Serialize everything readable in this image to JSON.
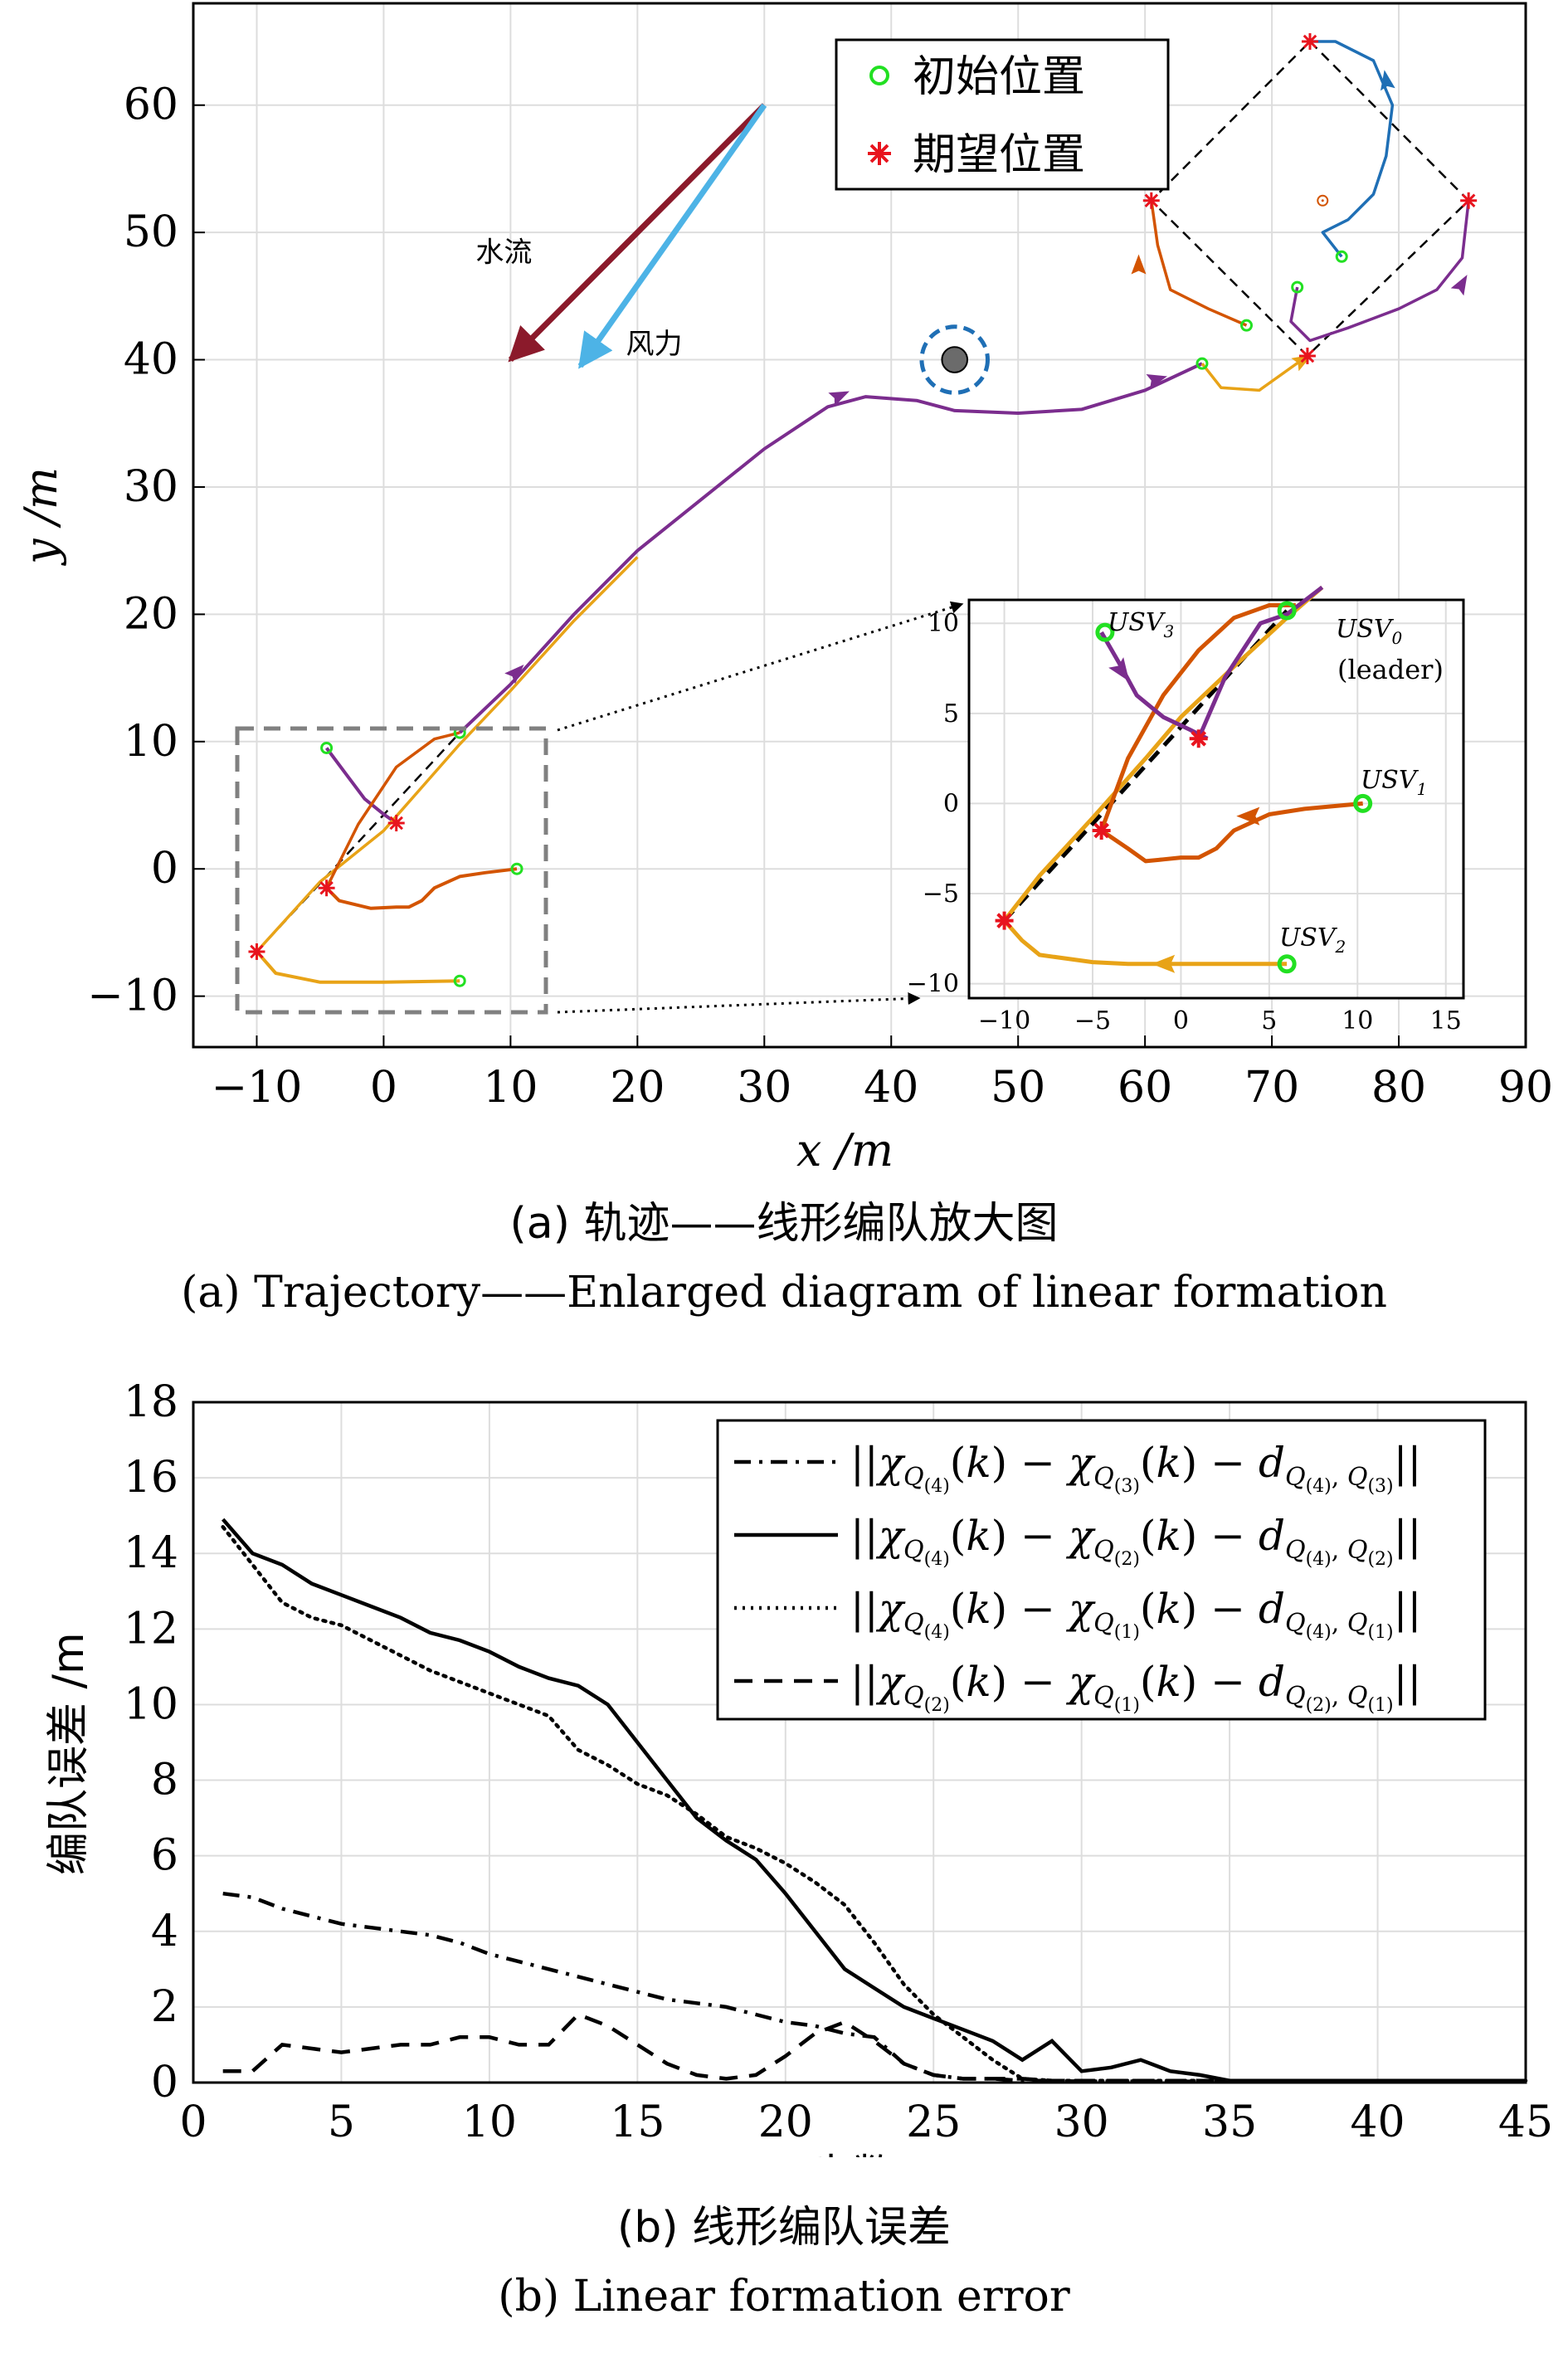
{
  "captions": {
    "a_cn": "(a) 轨迹——线形编队放大图",
    "a_en": "(a) Trajectory——Enlarged diagram of linear formation",
    "b_cn": "(b) 线形编队误差",
    "b_en": "(b) Linear formation error"
  },
  "chart_data": [
    {
      "type": "line",
      "xlabel": "x /m",
      "ylabel": "y /m",
      "xlim": [
        -15,
        90
      ],
      "ylim": [
        -14,
        68
      ],
      "xticks": [
        -10,
        0,
        10,
        20,
        30,
        40,
        50,
        60,
        70,
        80,
        90
      ],
      "yticks": [
        -10,
        0,
        10,
        20,
        30,
        40,
        50,
        60
      ],
      "grid": true,
      "legend": {
        "placement": "top",
        "entries": [
          "初始位置",
          "期望位置"
        ]
      },
      "annotations": [
        {
          "text": "水流",
          "color": "#8b1a2b",
          "from": [
            30,
            60
          ],
          "to": [
            10,
            40
          ]
        },
        {
          "text": "风力",
          "color": "#4db3e6",
          "from": [
            30,
            60
          ],
          "to": [
            15.5,
            39.5
          ]
        }
      ],
      "obstacle": {
        "center": [
          45,
          40
        ],
        "radius": 1,
        "safety_radius": 2.6
      },
      "initial_positions": [
        [
          6,
          10.7
        ],
        [
          10.5,
          0
        ],
        [
          6,
          -8.8
        ],
        [
          -4.5,
          9.5
        ],
        [
          64.5,
          39.7
        ],
        [
          68,
          42.7
        ],
        [
          72,
          45.7
        ],
        [
          75.5,
          48.1
        ]
      ],
      "expected_positions": [
        [
          -10,
          -6.5
        ],
        [
          -4.5,
          -1.5
        ],
        [
          1,
          3.6
        ],
        [
          72.8,
          40.3
        ],
        [
          85.5,
          52.5
        ],
        [
          73,
          65
        ],
        [
          60.5,
          52.5
        ]
      ],
      "series": [
        {
          "name": "USV0",
          "color": "#7b2d8e",
          "x": [
            6,
            10,
            15,
            20,
            25,
            30,
            35,
            38,
            42,
            45,
            50,
            55,
            60,
            64.5
          ],
          "y": [
            10.7,
            14.5,
            20,
            25,
            29,
            33,
            36.3,
            37.1,
            36.8,
            36,
            35.8,
            36.1,
            37.6,
            39.7
          ]
        },
        {
          "name": "USV1",
          "color": "#d35400",
          "x": [
            10.5,
            8,
            6,
            4,
            3,
            2,
            1,
            -1,
            -3.5,
            -4.5
          ],
          "y": [
            0,
            -0.3,
            -0.6,
            -1.5,
            -2.5,
            -3,
            -3,
            -3.1,
            -2.5,
            -1.5
          ]
        },
        {
          "name": "USV2",
          "color": "#e8a317",
          "x": [
            6,
            0,
            -5,
            -8.5,
            -10
          ],
          "y": [
            -8.8,
            -8.9,
            -8.9,
            -8.2,
            -6.5
          ]
        },
        {
          "name": "USV3",
          "color": "#7b2d8e",
          "x": [
            -4.5,
            -3,
            -1.5,
            0,
            1
          ],
          "y": [
            9.5,
            7.5,
            5.5,
            4.3,
            3.6
          ]
        }
      ],
      "inset": {
        "xlim": [
          -12,
          16
        ],
        "ylim": [
          -10.8,
          11.3
        ],
        "xticks": [
          -10,
          -5,
          0,
          5,
          10,
          15
        ],
        "yticks": [
          -10,
          -5,
          0,
          5,
          10
        ],
        "labels": {
          "usv0": "USV",
          "usv0_sub": "0",
          "leader": "(leader)",
          "usv1": "USV",
          "usv1_sub": "1",
          "usv2": "USV",
          "usv2_sub": "2",
          "usv3": "USV",
          "usv3_sub": "3"
        }
      }
    },
    {
      "type": "line",
      "xlabel": "步数",
      "ylabel": "编队误差 /m",
      "xlim": [
        0,
        45
      ],
      "ylim": [
        0,
        18
      ],
      "xticks": [
        0,
        5,
        10,
        15,
        20,
        25,
        30,
        35,
        40,
        45
      ],
      "yticks": [
        0,
        2,
        4,
        6,
        8,
        10,
        12,
        14,
        16,
        18
      ],
      "grid": true,
      "legend": {
        "placement": "top-right"
      },
      "x": [
        1,
        2,
        3,
        4,
        5,
        6,
        7,
        8,
        9,
        10,
        11,
        12,
        13,
        14,
        15,
        16,
        17,
        18,
        19,
        20,
        21,
        22,
        23,
        24,
        25,
        26,
        27,
        28,
        29,
        30,
        31,
        32,
        33,
        34,
        35,
        36,
        37,
        38,
        39,
        40,
        41,
        42,
        43,
        44,
        45
      ],
      "series": [
        {
          "name": "||χQ(4)(k) − χQ(3)(k) − dQ(4), Q(3)||",
          "style": "dashdot",
          "legend_parts": [
            "4",
            "3",
            "4",
            "3"
          ],
          "values": [
            5.0,
            4.9,
            4.6,
            4.4,
            4.2,
            4.1,
            4.0,
            3.9,
            3.7,
            3.4,
            3.2,
            3.0,
            2.8,
            2.6,
            2.4,
            2.2,
            2.1,
            2.0,
            1.8,
            1.6,
            1.5,
            1.3,
            1.2,
            0.5,
            0.2,
            0.1,
            0.1,
            0.05,
            0.05,
            0.03,
            0.03,
            0.03,
            0.03,
            0.03,
            0.03,
            0.02,
            0.02,
            0.02,
            0.02,
            0.02,
            0.02,
            0.02,
            0.02,
            0.02,
            0.02
          ]
        },
        {
          "name": "||χQ(4)(k) − χQ(2)(k) − dQ(4), Q(2)||",
          "style": "solid",
          "legend_parts": [
            "4",
            "2",
            "4",
            "2"
          ],
          "values": [
            14.9,
            14.0,
            13.7,
            13.2,
            12.9,
            12.6,
            12.3,
            11.9,
            11.7,
            11.4,
            11.0,
            10.7,
            10.5,
            10.0,
            9.0,
            8.0,
            7.0,
            6.4,
            5.9,
            5.0,
            4.0,
            3.0,
            2.5,
            2.0,
            1.7,
            1.4,
            1.1,
            0.6,
            1.1,
            0.3,
            0.4,
            0.6,
            0.3,
            0.2,
            0.05,
            0.05,
            0.05,
            0.05,
            0.05,
            0.05,
            0.05,
            0.05,
            0.05,
            0.05,
            0.05
          ]
        },
        {
          "name": "||χQ(4)(k) − χQ(1)(k) − dQ(4), Q(1)||",
          "style": "dotted",
          "legend_parts": [
            "4",
            "1",
            "4",
            "1"
          ],
          "values": [
            14.7,
            13.7,
            12.7,
            12.3,
            12.1,
            11.7,
            11.3,
            10.9,
            10.6,
            10.3,
            10.0,
            9.7,
            8.8,
            8.4,
            7.9,
            7.6,
            7.1,
            6.5,
            6.2,
            5.8,
            5.3,
            4.7,
            3.7,
            2.6,
            1.8,
            1.2,
            0.6,
            0.1,
            0.05,
            0.05,
            0.05,
            0.05,
            0.05,
            0.05,
            0.05,
            0.05,
            0.05,
            0.05,
            0.05,
            0.05,
            0.05,
            0.05,
            0.05,
            0.05,
            0.05
          ]
        },
        {
          "name": "||χQ(2)(k) − χQ(1)(k) − dQ(2), Q(1)||",
          "style": "dashed",
          "legend_parts": [
            "2",
            "1",
            "2",
            "1"
          ],
          "values": [
            0.3,
            0.3,
            1.0,
            0.9,
            0.8,
            0.9,
            1.0,
            1.0,
            1.2,
            1.2,
            1.0,
            1.0,
            1.8,
            1.5,
            1.0,
            0.5,
            0.2,
            0.1,
            0.2,
            0.7,
            1.3,
            1.6,
            1.1,
            0.5,
            0.2,
            0.1,
            0.1,
            0.1,
            0.05,
            0.05,
            0.05,
            0.05,
            0.05,
            0.05,
            0.05,
            0.05,
            0.05,
            0.05,
            0.05,
            0.05,
            0.05,
            0.05,
            0.05,
            0.05,
            0.05
          ]
        }
      ]
    }
  ]
}
